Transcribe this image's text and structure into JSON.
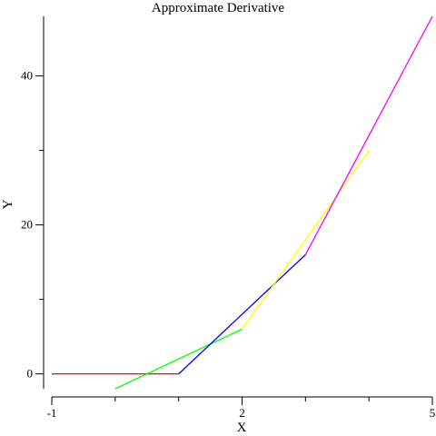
{
  "chart_data": {
    "type": "line",
    "title": "Approximate Derivative",
    "xlabel": "X",
    "ylabel": "Y",
    "xlim": [
      -1,
      5
    ],
    "ylim": [
      -2,
      48
    ],
    "x_ticks": [
      {
        "value": -1,
        "label": "-1"
      },
      {
        "value": 2,
        "label": "2"
      },
      {
        "value": 5,
        "label": "5"
      }
    ],
    "x_minor_ticks": [
      0,
      1,
      3,
      4
    ],
    "y_ticks": [
      {
        "value": 0,
        "label": "0"
      },
      {
        "value": 20,
        "label": "20"
      },
      {
        "value": 40,
        "label": "40"
      }
    ],
    "y_minor_ticks": [
      10,
      30
    ],
    "grid": false,
    "series": [
      {
        "name": "red",
        "color": "#ff0000",
        "x": [
          -1,
          1
        ],
        "y": [
          0,
          0
        ]
      },
      {
        "name": "green",
        "color": "#00ff00",
        "x": [
          0,
          2
        ],
        "y": [
          -2,
          6
        ]
      },
      {
        "name": "blue",
        "color": "#0000ff",
        "x": [
          1,
          3
        ],
        "y": [
          0,
          16
        ]
      },
      {
        "name": "yellow",
        "color": "#ffff00",
        "x": [
          2,
          4
        ],
        "y": [
          6,
          30
        ]
      },
      {
        "name": "magenta",
        "color": "#ff00ff",
        "x": [
          3,
          5
        ],
        "y": [
          16,
          48
        ]
      }
    ]
  }
}
